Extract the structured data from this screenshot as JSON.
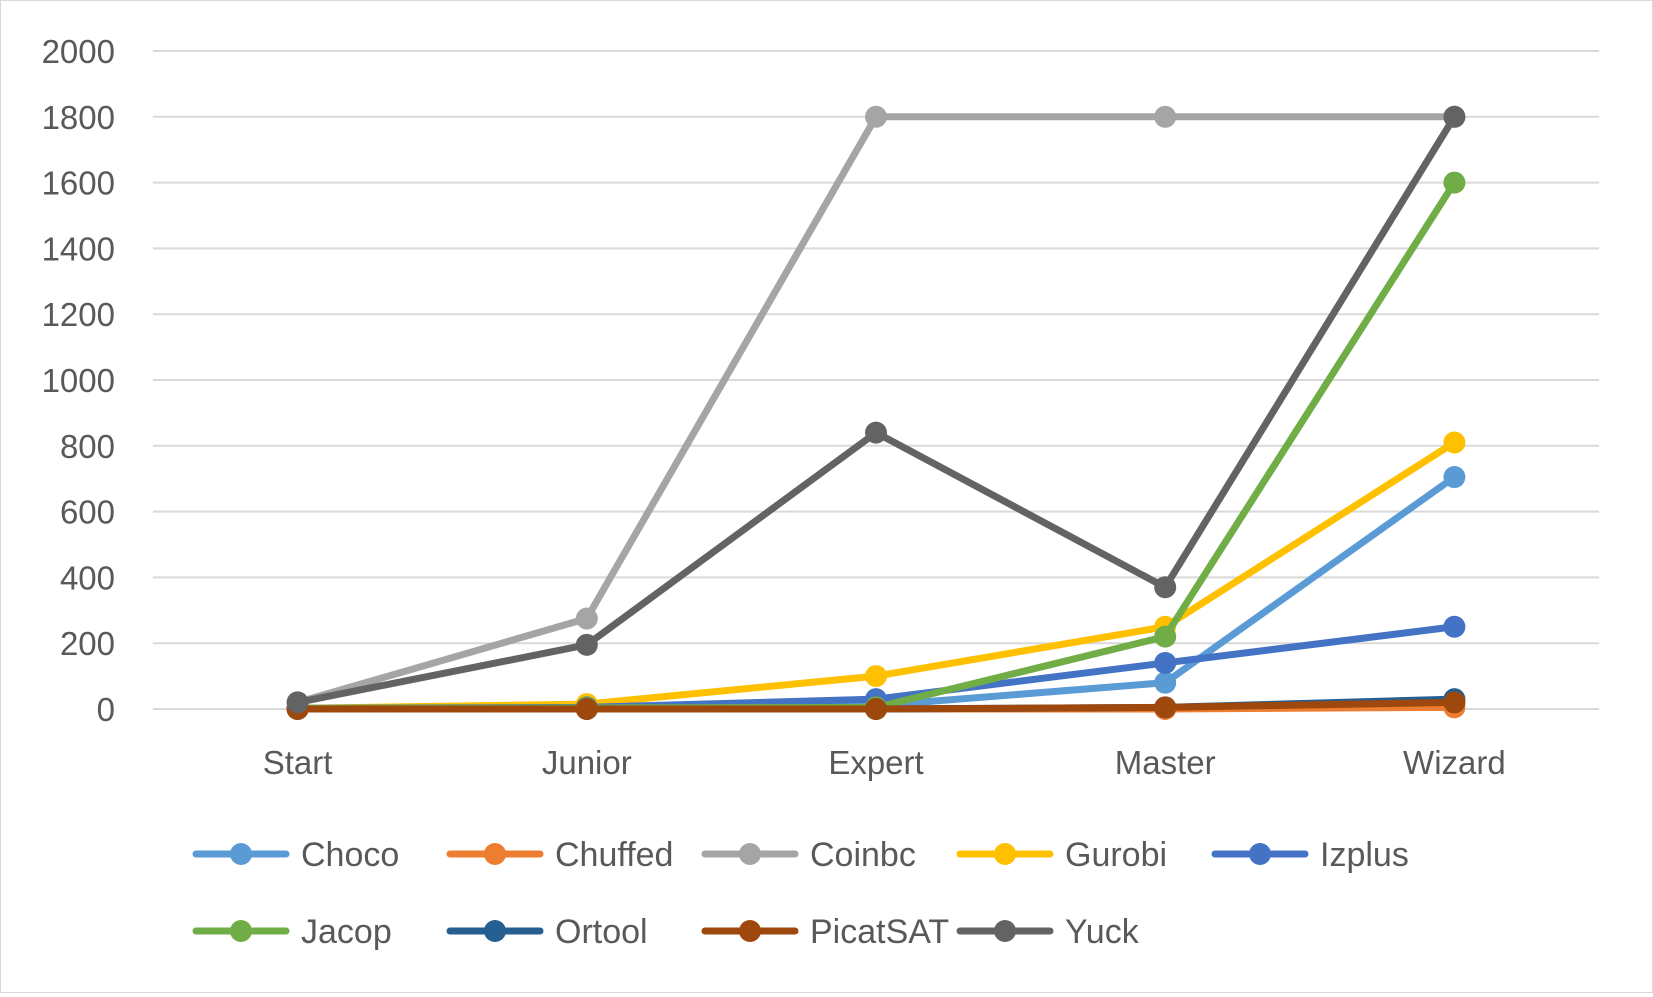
{
  "chart_data": {
    "type": "line",
    "title": "",
    "xlabel": "",
    "ylabel": "",
    "categories": [
      "Start",
      "Junior",
      "Expert",
      "Master",
      "Wizard"
    ],
    "ylim": [
      0,
      2000
    ],
    "yticks": [
      0,
      200,
      400,
      600,
      800,
      1000,
      1200,
      1400,
      1600,
      1800,
      2000
    ],
    "grid": true,
    "legend_position": "bottom",
    "series": [
      {
        "name": "Choco",
        "color": "#5B9BD5",
        "values": [
          2,
          5,
          10,
          80,
          705
        ]
      },
      {
        "name": "Chuffed",
        "color": "#ED7D31",
        "values": [
          0,
          0,
          0,
          0,
          5
        ]
      },
      {
        "name": "Coinbc",
        "color": "#A5A5A5",
        "values": [
          20,
          275,
          1800,
          1800,
          1800
        ]
      },
      {
        "name": "Gurobi",
        "color": "#FFC000",
        "values": [
          2,
          15,
          100,
          250,
          810
        ]
      },
      {
        "name": "Izplus",
        "color": "#4472C4",
        "values": [
          2,
          5,
          30,
          140,
          250
        ]
      },
      {
        "name": "Jacop",
        "color": "#70AD47",
        "values": [
          2,
          3,
          5,
          220,
          1600
        ]
      },
      {
        "name": "Ortool",
        "color": "#255E91",
        "values": [
          0,
          0,
          0,
          5,
          30
        ]
      },
      {
        "name": "PicatSAT",
        "color": "#9E480E",
        "values": [
          0,
          0,
          0,
          5,
          20
        ]
      },
      {
        "name": "Yuck",
        "color": "#636363",
        "values": [
          20,
          195,
          840,
          370,
          1800
        ]
      }
    ]
  }
}
